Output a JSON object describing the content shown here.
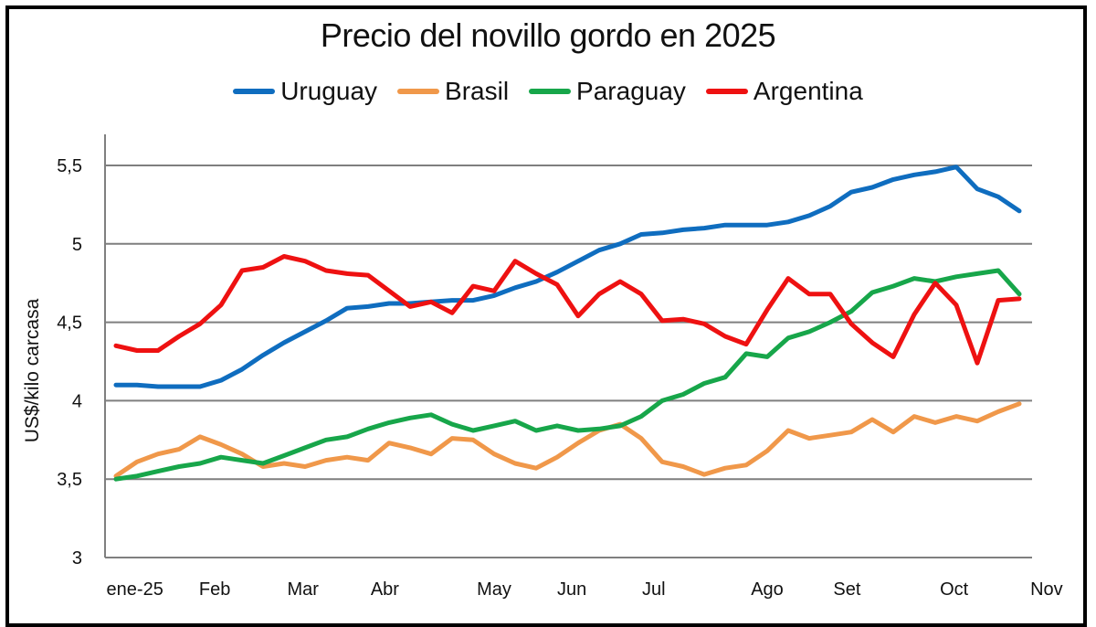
{
  "chart_data": {
    "type": "line",
    "title": "Precio del novillo gordo en 2025",
    "xlabel": "",
    "ylabel": "US$/kilo carcasa",
    "ylim": [
      3,
      5.6
    ],
    "yticks": [
      3,
      3.5,
      4,
      4.5,
      5,
      5.5
    ],
    "ytick_labels": [
      "3",
      "3,5",
      "4",
      "4,5",
      "5",
      "5,5"
    ],
    "grid": true,
    "legend_position": "top",
    "x_points": 44,
    "xticks": [
      {
        "label": "ene-25",
        "at": 0.9
      },
      {
        "label": "Feb",
        "at": 4.7
      },
      {
        "label": "Mar",
        "at": 8.9
      },
      {
        "label": "Abr",
        "at": 12.8
      },
      {
        "label": "May",
        "at": 18.0
      },
      {
        "label": "Jun",
        "at": 21.7
      },
      {
        "label": "Jul",
        "at": 25.6
      },
      {
        "label": "Ago",
        "at": 31.0
      },
      {
        "label": "Set",
        "at": 34.8
      },
      {
        "label": "Oct",
        "at": 39.9
      },
      {
        "label": "Nov",
        "at": 44.3
      }
    ],
    "series": [
      {
        "name": "Uruguay",
        "color": "#0f6dbf",
        "values": [
          4.1,
          4.1,
          4.09,
          4.09,
          4.09,
          4.13,
          4.2,
          4.29,
          4.37,
          4.44,
          4.51,
          4.59,
          4.6,
          4.62,
          4.62,
          4.63,
          4.64,
          4.64,
          4.67,
          4.72,
          4.76,
          4.82,
          4.89,
          4.96,
          5.0,
          5.06,
          5.07,
          5.09,
          5.1,
          5.12,
          5.12,
          5.12,
          5.14,
          5.18,
          5.24,
          5.33,
          5.36,
          5.41,
          5.44,
          5.46,
          5.49,
          5.35,
          5.3,
          5.21
        ]
      },
      {
        "name": "Brasil",
        "color": "#f0984a",
        "values": [
          3.52,
          3.61,
          3.66,
          3.69,
          3.77,
          3.72,
          3.66,
          3.58,
          3.6,
          3.58,
          3.62,
          3.64,
          3.62,
          3.73,
          3.7,
          3.66,
          3.76,
          3.75,
          3.66,
          3.6,
          3.57,
          3.64,
          3.73,
          3.81,
          3.85,
          3.76,
          3.61,
          3.58,
          3.53,
          3.57,
          3.59,
          3.68,
          3.81,
          3.76,
          3.78,
          3.8,
          3.88,
          3.8,
          3.9,
          3.86,
          3.9,
          3.87,
          3.93,
          3.98
        ]
      },
      {
        "name": "Paraguay",
        "color": "#17a64a",
        "values": [
          3.5,
          3.52,
          3.55,
          3.58,
          3.6,
          3.64,
          3.62,
          3.6,
          3.65,
          3.7,
          3.75,
          3.77,
          3.82,
          3.86,
          3.89,
          3.91,
          3.85,
          3.81,
          3.84,
          3.87,
          3.81,
          3.84,
          3.81,
          3.82,
          3.84,
          3.9,
          4.0,
          4.04,
          4.11,
          4.15,
          4.3,
          4.28,
          4.4,
          4.44,
          4.5,
          4.57,
          4.69,
          4.73,
          4.78,
          4.76,
          4.79,
          4.81,
          4.83,
          4.68
        ]
      },
      {
        "name": "Argentina",
        "color": "#ee1111",
        "values": [
          4.35,
          4.32,
          4.32,
          4.41,
          4.49,
          4.61,
          4.83,
          4.85,
          4.92,
          4.89,
          4.83,
          4.81,
          4.8,
          4.7,
          4.6,
          4.63,
          4.56,
          4.73,
          4.7,
          4.89,
          4.81,
          4.74,
          4.54,
          4.68,
          4.76,
          4.68,
          4.51,
          4.52,
          4.49,
          4.41,
          4.36,
          4.58,
          4.78,
          4.68,
          4.68,
          4.49,
          4.37,
          4.28,
          4.55,
          4.75,
          4.61,
          4.24,
          4.64,
          4.65
        ]
      }
    ]
  }
}
